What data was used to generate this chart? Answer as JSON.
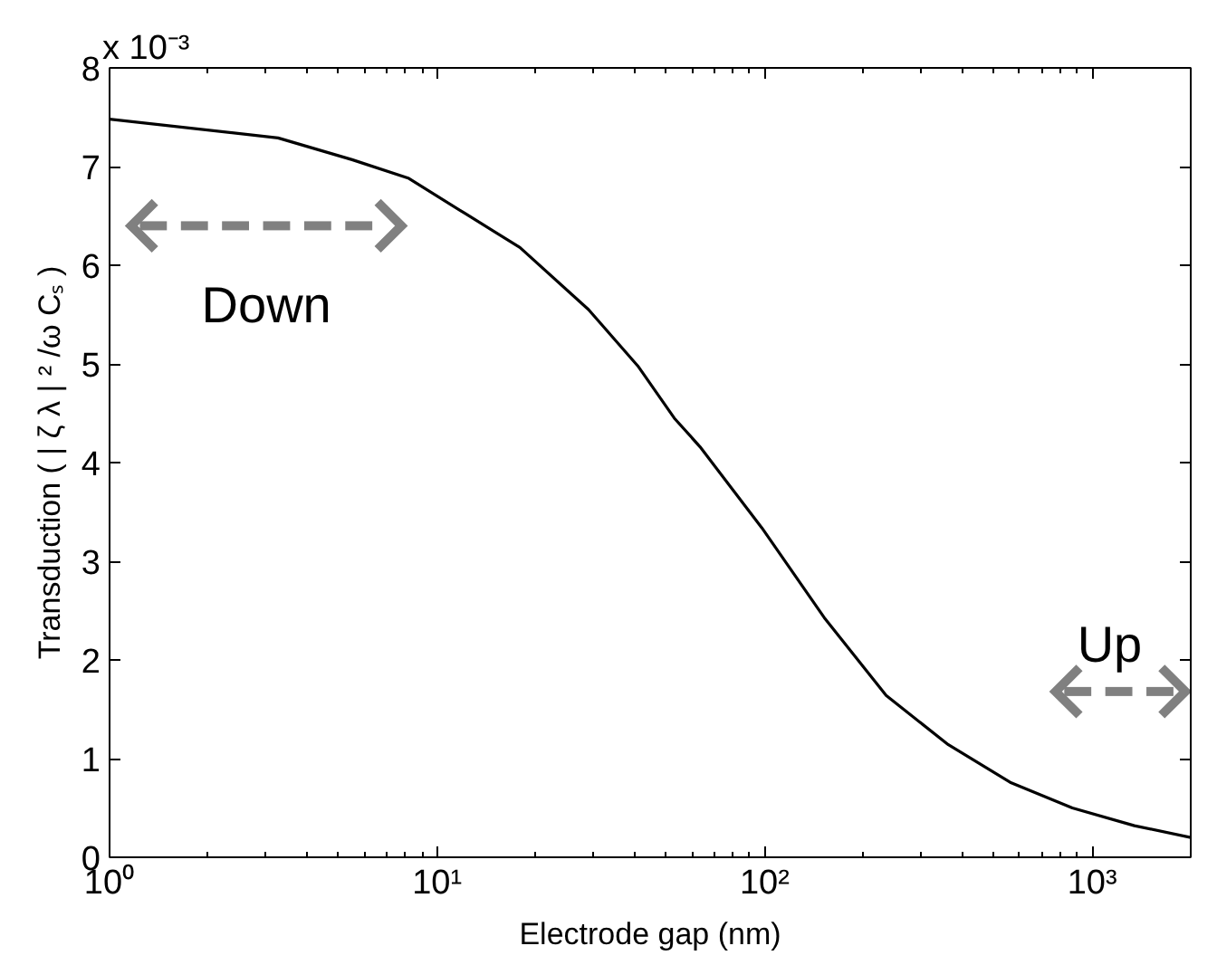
{
  "chart_data": {
    "type": "line",
    "xlabel": "Electrode gap (nm)",
    "ylabel": "Transduction ( | ζ λ | ² /ω Cₛ )",
    "x": [
      1,
      3.27,
      5.5,
      8.2,
      12.1,
      17.9,
      29,
      41,
      53,
      63.5,
      98,
      152,
      235,
      364,
      562,
      870,
      1346,
      2000
    ],
    "series": [
      {
        "color": "#000000",
        "values": [
          7.48,
          7.29,
          7.07,
          6.88,
          6.53,
          6.18,
          5.55,
          4.98,
          4.45,
          4.16,
          3.34,
          2.43,
          1.64,
          1.14,
          0.76,
          0.5,
          0.32,
          0.2
        ]
      }
    ],
    "log": "x",
    "xlim": [
      1,
      2000
    ],
    "ylim": [
      0,
      8
    ],
    "xticks": [
      {
        "value": 1,
        "label": "10⁰"
      },
      {
        "value": 10,
        "label": "10¹"
      },
      {
        "value": 100,
        "label": "10²"
      },
      {
        "value": 1000,
        "label": "10³"
      }
    ],
    "yticks": [
      0,
      1,
      2,
      3,
      4,
      5,
      6,
      7,
      8
    ],
    "grid": false,
    "annotations": [
      "x 10⁻³",
      "Down",
      "Up"
    ]
  }
}
